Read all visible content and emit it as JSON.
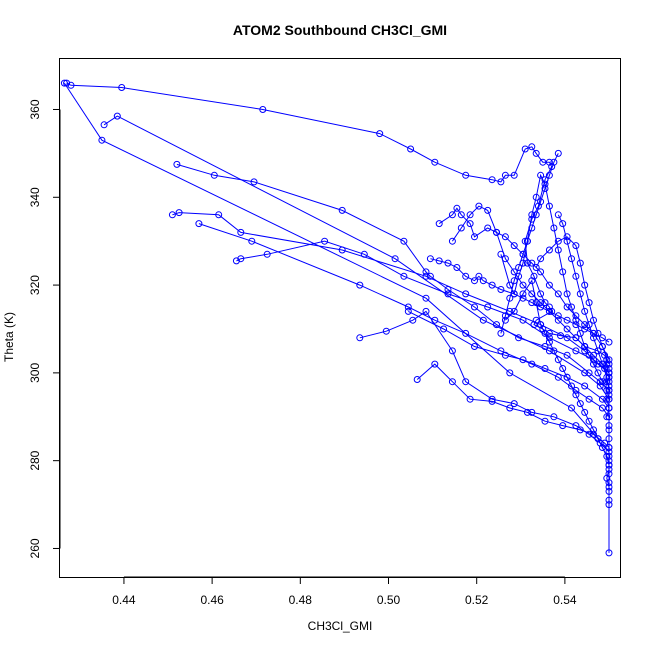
{
  "chart_data": {
    "type": "scatter",
    "title": "ATOM2 Southbound CH3Cl_GMI",
    "xlabel": "CH3Cl_GMI",
    "ylabel": "Theta (K)",
    "xlim": [
      0.4255,
      0.5525
    ],
    "ylim": [
      253.5,
      371.5
    ],
    "x_ticks": [
      0.44,
      0.46,
      0.48,
      0.5,
      0.52,
      0.54
    ],
    "x_tick_labels": [
      "0.44",
      "0.46",
      "0.48",
      "0.50",
      "0.52",
      "0.54"
    ],
    "y_ticks": [
      260,
      280,
      300,
      320,
      340,
      360
    ],
    "y_tick_labels": [
      "260",
      "280",
      "300",
      "320",
      "340",
      "360"
    ],
    "grid": false,
    "style": {
      "color": "#0000ff",
      "marker": "open-circle",
      "connected": true
    },
    "series": [
      {
        "x": [
          0.427,
          0.428,
          0.4395,
          0.4715,
          0.498,
          0.505,
          0.5105,
          0.5175,
          0.5235,
          0.5255,
          0.5265,
          0.5285,
          0.531,
          0.5325,
          0.5335,
          0.535,
          0.5365,
          0.537,
          0.5355,
          0.534,
          0.5325,
          0.531,
          0.5315,
          0.533,
          0.5345,
          0.5355,
          0.5365,
          0.537,
          0.5335,
          0.533,
          0.535,
          0.5365,
          0.539,
          0.5425,
          0.5445,
          0.5475,
          0.549,
          0.5495,
          0.5495,
          0.55,
          0.55,
          0.55,
          0.5495,
          0.55,
          0.55,
          0.5495,
          0.55,
          0.55,
          0.55,
          0.55,
          0.55,
          0.55,
          0.55,
          0.55,
          0.55,
          0.55,
          0.55,
          0.55,
          0.55,
          0.55
        ],
        "y": [
          366,
          365.5,
          365,
          360,
          354.5,
          351,
          348,
          345,
          344,
          343.5,
          345,
          345,
          351,
          351.5,
          350,
          348,
          348,
          347,
          344,
          338,
          335,
          330,
          325,
          322,
          318,
          316,
          315,
          314,
          312,
          311,
          310,
          309,
          308.5,
          308,
          306,
          305,
          304,
          303,
          302,
          301,
          300,
          299,
          298,
          297,
          295,
          294,
          292,
          290,
          288,
          287,
          285,
          283,
          281,
          279,
          277,
          275,
          273,
          271,
          270,
          259
        ]
      },
      {
        "x": [
          0.4265,
          0.435,
          0.5085,
          0.5275,
          0.5415,
          0.5475,
          0.55,
          0.55,
          0.5495,
          0.55
        ],
        "y": [
          366,
          353,
          317,
          300,
          292,
          285,
          280,
          278,
          276,
          274
        ]
      },
      {
        "x": [
          0.4355,
          0.4385,
          0.5015,
          0.5215,
          0.5365,
          0.5445,
          0.548,
          0.55,
          0.55,
          0.5495
        ],
        "y": [
          356.5,
          358.5,
          326,
          312,
          305,
          300,
          297,
          294,
          292,
          290
        ]
      },
      {
        "x": [
          0.452,
          0.4605,
          0.4695,
          0.4895,
          0.5035,
          0.5085,
          0.5095,
          0.5135,
          0.5195,
          0.5245,
          0.5295,
          0.5355,
          0.5405,
          0.5455,
          0.548,
          0.55
        ],
        "y": [
          347.5,
          345,
          343.5,
          337,
          330,
          323,
          322,
          319,
          315,
          311,
          308,
          306,
          304,
          300,
          298,
          296
        ]
      },
      {
        "x": [
          0.451,
          0.4525,
          0.4615,
          0.4665,
          0.4895,
          0.5085,
          0.5175,
          0.5275,
          0.5345,
          0.5405,
          0.5445,
          0.5475,
          0.55,
          0.55
        ],
        "y": [
          336,
          336.5,
          336,
          332,
          328,
          322,
          318,
          314,
          311,
          308,
          305,
          302,
          300,
          298
        ]
      },
      {
        "x": [
          0.4655,
          0.4665,
          0.4725,
          0.4855,
          0.4945,
          0.5035,
          0.5135,
          0.5225,
          0.5305,
          0.5365,
          0.5425,
          0.5465,
          0.549,
          0.55
        ],
        "y": [
          325.5,
          326,
          327,
          330,
          327,
          322,
          318,
          315,
          312,
          308,
          305,
          303,
          301,
          299
        ]
      },
      {
        "x": [
          0.457,
          0.469,
          0.4935,
          0.5045,
          0.5105,
          0.5175,
          0.5255,
          0.5325,
          0.5385,
          0.5425,
          0.5455,
          0.5485,
          0.55
        ],
        "y": [
          334,
          330,
          320,
          315,
          312,
          309,
          305,
          302,
          299,
          296,
          294,
          292,
          290
        ]
      },
      {
        "x": [
          0.4935,
          0.4995,
          0.5055,
          0.5085,
          0.5145,
          0.5175,
          0.5235,
          0.5285,
          0.5325,
          0.5375,
          0.5425,
          0.5455,
          0.548,
          0.55
        ],
        "y": [
          308,
          309.5,
          312,
          314,
          305,
          298,
          294,
          293,
          291,
          290,
          288,
          286,
          284,
          282
        ]
      },
      {
        "x": [
          0.5065,
          0.5105,
          0.5145,
          0.5185,
          0.5235,
          0.5275,
          0.5315,
          0.5355,
          0.5395,
          0.5435,
          0.5465,
          0.549,
          0.55
        ],
        "y": [
          298.5,
          302,
          298,
          294,
          293.5,
          292,
          291,
          289,
          288,
          287,
          286,
          284,
          283
        ]
      },
      {
        "x": [
          0.5045,
          0.5125,
          0.5195,
          0.5265,
          0.5305,
          0.5355,
          0.5405,
          0.5445,
          0.5485,
          0.55
        ],
        "y": [
          314,
          310,
          306,
          304,
          303,
          301,
          299,
          297,
          294,
          292
        ]
      },
      {
        "x": [
          0.5095,
          0.5115,
          0.5135,
          0.5155,
          0.5175,
          0.5195,
          0.5205,
          0.5215,
          0.5235,
          0.5255,
          0.5285,
          0.5305,
          0.5325,
          0.5345,
          0.5365,
          0.5385,
          0.5405,
          0.5425,
          0.5445,
          0.5465,
          0.5485,
          0.55
        ],
        "y": [
          326,
          325.5,
          325,
          324,
          322,
          321,
          322,
          321,
          320,
          319,
          318,
          317,
          316,
          315,
          314,
          313,
          312,
          311,
          310,
          309,
          308,
          307
        ]
      },
      {
        "x": [
          0.5115,
          0.5145,
          0.5155,
          0.5165,
          0.5185,
          0.5195,
          0.5225,
          0.5245,
          0.5265,
          0.5285,
          0.5305,
          0.5325,
          0.5345,
          0.5365,
          0.5385,
          0.5405,
          0.5425,
          0.5445,
          0.5465,
          0.5485,
          0.55
        ],
        "y": [
          334,
          336,
          337.5,
          336,
          334,
          331,
          333,
          332,
          331,
          329,
          327,
          325,
          323,
          320,
          318,
          315,
          313,
          311,
          309,
          306,
          303
        ]
      },
      {
        "x": [
          0.5145,
          0.5165,
          0.5185,
          0.5205,
          0.5225,
          0.5245,
          0.5265,
          0.5285,
          0.5305,
          0.5325,
          0.5345,
          0.5365,
          0.5385,
          0.5405,
          0.5425,
          0.5445,
          0.5465,
          0.5485,
          0.55
        ],
        "y": [
          330,
          333,
          336,
          338,
          337,
          332,
          326,
          323,
          320,
          318,
          316,
          314,
          312,
          310,
          308,
          306,
          304,
          302,
          300
        ]
      },
      {
        "x": [
          0.5255,
          0.5275,
          0.5285,
          0.5295,
          0.5305,
          0.5315,
          0.5325,
          0.5335,
          0.5345,
          0.5355,
          0.5365,
          0.5375,
          0.5385,
          0.5395,
          0.5405,
          0.5415,
          0.5425,
          0.5435,
          0.5445,
          0.5455,
          0.5465,
          0.5475,
          0.5485,
          0.5495,
          0.55
        ],
        "y": [
          327,
          320,
          318,
          322,
          325,
          330,
          336,
          340,
          345,
          343,
          338,
          333,
          328,
          323,
          318,
          315,
          312,
          309,
          306,
          304,
          302,
          300,
          298,
          296,
          294
        ]
      },
      {
        "x": [
          0.5265,
          0.5285,
          0.5305,
          0.5325,
          0.5335,
          0.5345,
          0.5355,
          0.5365,
          0.5375,
          0.5385,
          0.5395,
          0.5405,
          0.5415,
          0.5425,
          0.5435,
          0.5445,
          0.5455,
          0.5465,
          0.5475,
          0.5485,
          0.5495,
          0.55
        ],
        "y": [
          312,
          314,
          318,
          321,
          316,
          311,
          309,
          307,
          305,
          303,
          301,
          299,
          297,
          295,
          293,
          291,
          289,
          287,
          285,
          283,
          281,
          279
        ]
      },
      {
        "x": [
          0.5335,
          0.5345,
          0.5365,
          0.5385,
          0.5405,
          0.5425,
          0.5435,
          0.5445,
          0.5455,
          0.5465,
          0.5475,
          0.5485,
          0.55
        ],
        "y": [
          324,
          326,
          328,
          330,
          331,
          329,
          325,
          320,
          316,
          312,
          309,
          306,
          302
        ]
      },
      {
        "x": [
          0.5385,
          0.5395,
          0.5405,
          0.5415,
          0.5425,
          0.5435,
          0.5445,
          0.5455,
          0.5465,
          0.5475,
          0.5485,
          0.5495,
          0.55
        ],
        "y": [
          336,
          334,
          330,
          326,
          322,
          318,
          314,
          311,
          308,
          305,
          302,
          299,
          296
        ]
      },
      {
        "x": [
          0.5255,
          0.5265,
          0.5275,
          0.5285,
          0.5295,
          0.5305,
          0.5315,
          0.5325,
          0.5335,
          0.5345,
          0.5355,
          0.5365,
          0.5375,
          0.5385
        ],
        "y": [
          309,
          313,
          317,
          321,
          324,
          327,
          330,
          333,
          336,
          339,
          342,
          345,
          348,
          350
        ]
      }
    ]
  }
}
